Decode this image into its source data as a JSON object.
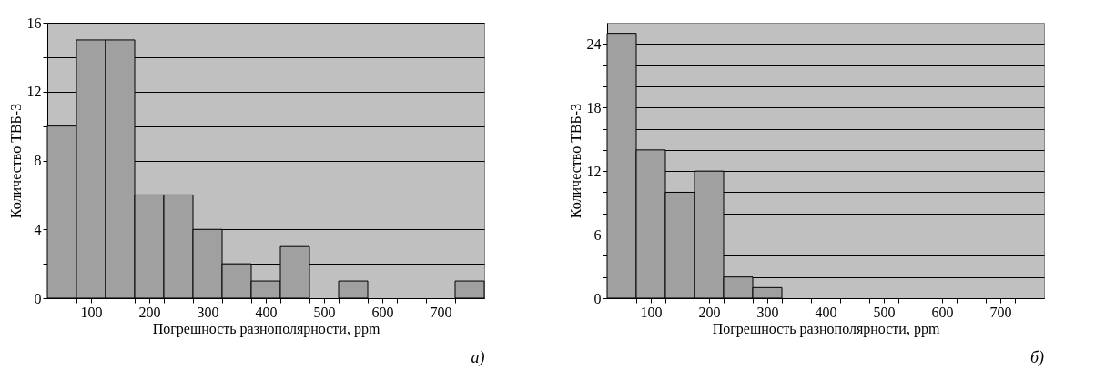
{
  "chart_data": [
    {
      "type": "histogram",
      "xlabel": "Погрешность разнополярности, ppm",
      "ylabel": "Количество ТВБ-3",
      "bins": [
        25,
        75,
        125,
        175,
        225,
        275,
        325,
        375,
        425,
        475,
        525,
        575,
        625,
        675,
        725,
        775
      ],
      "values": [
        10,
        15,
        15,
        6,
        6,
        4,
        2,
        1,
        3,
        0,
        1,
        0,
        0,
        0,
        1
      ],
      "color": "#a0a0a0",
      "xlim": [
        25,
        775
      ],
      "ylim": [
        0,
        16
      ],
      "xticks": [
        {
          "value": 75,
          "label": null
        },
        100,
        {
          "value": 125,
          "label": null
        },
        {
          "value": 175,
          "label": null
        },
        200,
        {
          "value": 225,
          "label": null
        },
        {
          "value": 275,
          "label": null
        },
        300,
        {
          "value": 325,
          "label": null
        },
        {
          "value": 375,
          "label": null
        },
        400,
        {
          "value": 425,
          "label": null
        },
        {
          "value": 475,
          "label": null
        },
        500,
        {
          "value": 525,
          "label": null
        },
        {
          "value": 575,
          "label": null
        },
        600,
        {
          "value": 625,
          "label": null
        },
        {
          "value": 675,
          "label": null
        },
        700,
        {
          "value": 725,
          "label": null
        }
      ],
      "yticks": [
        0,
        {
          "value": 2,
          "label": null
        },
        4,
        {
          "value": 6,
          "label": null
        },
        8,
        {
          "value": 10,
          "label": null
        },
        12,
        {
          "value": 14,
          "label": null
        },
        16
      ],
      "grid": "y",
      "annotations": [
        "а)"
      ]
    },
    {
      "type": "histogram",
      "xlabel": "Погрешность разнополярности, ppm",
      "ylabel": "Количество ТВБ-3",
      "bins": [
        25,
        75,
        125,
        175,
        225,
        275,
        325,
        375,
        425,
        475,
        525,
        575,
        625,
        675,
        725,
        775
      ],
      "values": [
        25,
        14,
        10,
        12,
        2,
        1,
        0,
        0,
        0,
        0,
        0,
        0,
        0,
        0,
        0
      ],
      "color": "#a0a0a0",
      "xlim": [
        25,
        775
      ],
      "ylim": [
        0,
        26
      ],
      "xticks": [
        {
          "value": 75,
          "label": null
        },
        100,
        {
          "value": 125,
          "label": null
        },
        {
          "value": 175,
          "label": null
        },
        200,
        {
          "value": 225,
          "label": null
        },
        {
          "value": 275,
          "label": null
        },
        300,
        {
          "value": 325,
          "label": null
        },
        {
          "value": 375,
          "label": null
        },
        400,
        {
          "value": 425,
          "label": null
        },
        {
          "value": 475,
          "label": null
        },
        500,
        {
          "value": 525,
          "label": null
        },
        {
          "value": 575,
          "label": null
        },
        600,
        {
          "value": 625,
          "label": null
        },
        {
          "value": 675,
          "label": null
        },
        700,
        {
          "value": 725,
          "label": null
        }
      ],
      "yticks": [
        0,
        {
          "value": 2,
          "label": null
        },
        {
          "value": 4,
          "label": null
        },
        6,
        {
          "value": 8,
          "label": null
        },
        {
          "value": 10,
          "label": null
        },
        12,
        {
          "value": 14,
          "label": null
        },
        {
          "value": 16,
          "label": null
        },
        18,
        {
          "value": 20,
          "label": null
        },
        {
          "value": 22,
          "label": null
        },
        24
      ],
      "grid": "y",
      "annotations": [
        "б)"
      ]
    }
  ]
}
